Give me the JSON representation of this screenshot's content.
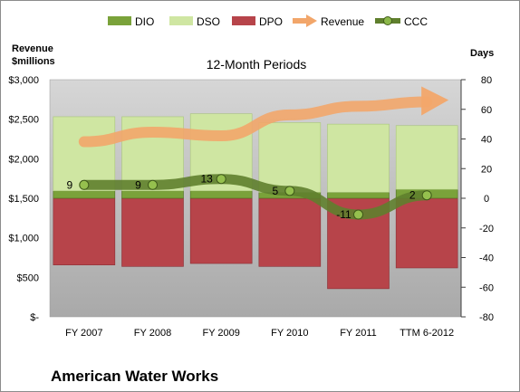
{
  "title": "American Water Works",
  "subtitle": "12-Month Periods",
  "left_axis_title": [
    "Revenue",
    "$millions"
  ],
  "right_axis_title": "Days",
  "legend": [
    {
      "key": "dio",
      "label": "DIO",
      "type": "bar"
    },
    {
      "key": "dso",
      "label": "DSO",
      "type": "bar"
    },
    {
      "key": "dpo",
      "label": "DPO",
      "type": "bar"
    },
    {
      "key": "revenue",
      "label": "Revenue",
      "type": "arrow"
    },
    {
      "key": "ccc",
      "label": "CCC",
      "type": "line-marker"
    }
  ],
  "colors": {
    "dio": "#7aa23a",
    "dso": "#cfe6a2",
    "dpo": "#b7444a",
    "revenue": "#f2a66a",
    "ccc": "#5f7f2d",
    "plot_bg": "#bcbcbc"
  },
  "chart_data": {
    "type": "bar",
    "stacked": true,
    "categories": [
      "FY 2007",
      "FY 2008",
      "FY 2009",
      "FY 2010",
      "FY 2011",
      "TTM 6-2012"
    ],
    "left_axis": {
      "ylim": [
        0,
        3000
      ],
      "ticks": [
        0,
        500,
        1000,
        1500,
        2000,
        2500,
        3000
      ],
      "tick_labels": [
        "$-",
        "$500",
        "$1,000",
        "$1,500",
        "$2,000",
        "$2,500",
        "$3,000"
      ]
    },
    "right_axis": {
      "ylim": [
        -80,
        80
      ],
      "ticks": [
        -80,
        -60,
        -40,
        -20,
        0,
        20,
        40,
        60,
        80
      ],
      "tick_labels": [
        "-80",
        "-60",
        "-40",
        "-20",
        "0",
        "20",
        "40",
        "60",
        "80"
      ]
    },
    "grid": false,
    "legend_position": "top",
    "series": [
      {
        "name": "DPO",
        "axis": "right",
        "values": [
          45,
          46,
          44,
          46,
          61,
          47
        ]
      },
      {
        "name": "DIO",
        "axis": "right",
        "values": [
          5,
          5,
          5,
          4,
          4,
          6
        ]
      },
      {
        "name": "DSO",
        "axis": "right",
        "values": [
          50,
          50,
          52,
          47,
          46,
          43
        ]
      },
      {
        "name": "CCC",
        "axis": "right",
        "type": "line",
        "values": [
          9,
          9,
          13,
          5,
          -11,
          2
        ]
      },
      {
        "name": "Revenue",
        "axis": "left",
        "type": "line",
        "values": [
          2215,
          2336,
          2290,
          2555,
          2663,
          2720
        ]
      }
    ]
  }
}
